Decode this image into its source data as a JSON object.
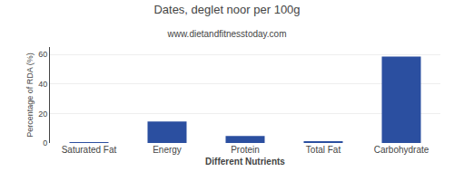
{
  "chart_data": {
    "type": "bar",
    "title": "Dates, deglet noor per 100g",
    "subtitle": "www.dietandfitnesstoday.com",
    "xlabel": "Different Nutrients",
    "ylabel": "Percentage of RDA (%)",
    "categories": [
      "Saturated Fat",
      "Energy",
      "Protein",
      "Total Fat",
      "Carbohydrate"
    ],
    "values": [
      0.2,
      14.5,
      4.7,
      1.2,
      58.5
    ],
    "color": "#2b4fa0",
    "ylim": [
      0,
      65
    ],
    "yticks": [
      0,
      20,
      40,
      60
    ],
    "grid": true
  }
}
